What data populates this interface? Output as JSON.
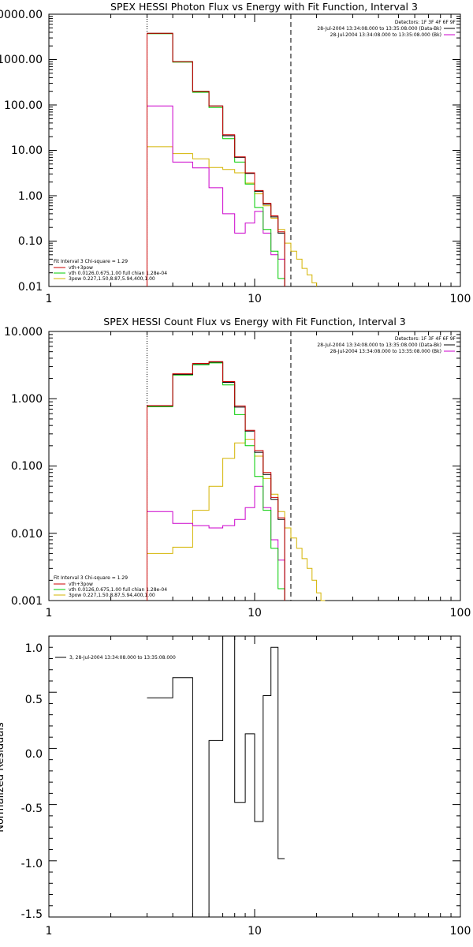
{
  "colors": {
    "total": "#000000",
    "thermal": "#cc0000",
    "vth": "#00cc00",
    "bpow": "#cc00cc",
    "thick": "#d4b400",
    "residual": "#000000",
    "background": "#ffffff"
  },
  "chart_data": [
    {
      "type": "line",
      "id": "photon",
      "title": "SPEX HESSI Photon Flux vs Energy with Fit Function, Interval 3",
      "xscale": "log",
      "yscale": "log",
      "xlim": [
        1,
        100
      ],
      "ylim": [
        0.01,
        10000
      ],
      "x_ticks": [
        "1",
        "10",
        "100"
      ],
      "y_ticks": [
        "0.01",
        "0.10",
        "1.00",
        "10.00",
        "100.00",
        "1000.00",
        "10000.00"
      ],
      "fit_range_x": [
        3,
        15
      ],
      "header": {
        "detectors": "Detectors: 1F 3F 4F 6F 9F",
        "line1": "28-Jul-2004 13:34:08.000 to 13:35:08.000 (Data-Bk)",
        "line2": "28-Jul-2004 13:34:08.000 to 13:35:08.000 (Bk)"
      },
      "legend": {
        "title": "Fit Interval 3   Chi-square = 1.29",
        "entries": [
          "vth+3pow",
          "vth 0.0126,0.675,1.00  full chian 1.28e-04",
          "3pow 0.227,1.50,8.87,5.94,400,1.00"
        ]
      },
      "bin_edges": [
        3,
        4,
        5,
        6,
        7,
        8,
        9,
        10,
        11,
        12,
        13,
        14,
        15,
        16,
        17,
        18,
        19,
        20,
        21,
        22,
        23
      ],
      "series": [
        {
          "name": "vth+3pow",
          "color_key": "total",
          "values": [
            3800,
            900,
            200,
            95,
            21,
            7,
            3.1,
            1.25,
            0.65,
            0.34,
            0.15,
            null,
            null,
            null,
            null,
            null,
            null,
            null,
            null,
            null
          ]
        },
        {
          "name": "vth 0.0126,0.675,1.00  full chian 1.28e-04",
          "color_key": "vth",
          "values": [
            3700,
            880,
            190,
            88,
            18,
            5.5,
            1.8,
            0.55,
            0.18,
            0.06,
            0.015,
            null,
            null,
            null,
            null,
            null,
            null,
            null,
            null,
            null
          ]
        },
        {
          "name": "3pow 0.227,1.50,8.87,5.94,400,1.00",
          "color_key": "thick",
          "values": [
            12,
            8.5,
            6.5,
            4.2,
            3.8,
            3.2,
            1.9,
            1.1,
            0.6,
            0.32,
            0.18,
            0.09,
            0.06,
            0.04,
            0.025,
            0.018,
            0.012,
            null,
            null,
            null
          ]
        },
        {
          "name": "",
          "color_key": "bpow",
          "values": [
            95,
            5.5,
            4.1,
            1.5,
            0.4,
            0.15,
            0.25,
            0.45,
            0.15,
            0.05,
            0.04,
            null,
            null,
            null,
            null,
            null,
            null,
            null,
            null,
            null
          ]
        },
        {
          "name": "",
          "color_key": "thermal",
          "values": [
            3800,
            900,
            200,
            95,
            22,
            7.2,
            3.2,
            1.3,
            0.68,
            0.36,
            0.16,
            null,
            null,
            null,
            null,
            null,
            null,
            null,
            null,
            null
          ]
        }
      ]
    },
    {
      "type": "line",
      "id": "count",
      "title": "SPEX HESSI Count Flux vs Energy with Fit Function, Interval 3",
      "xscale": "log",
      "yscale": "log",
      "xlim": [
        1,
        100
      ],
      "ylim": [
        0.001,
        10
      ],
      "x_ticks": [
        "1",
        "10",
        "100"
      ],
      "y_ticks": [
        "0.001",
        "0.010",
        "0.100",
        "1.000",
        "10.000"
      ],
      "fit_range_x": [
        3,
        15
      ],
      "header": {
        "detectors": "Detectors: 1F 3F 4F 6F 9F",
        "line1": "28-Jul-2004 13:34:08.000 to 13:35:08.000 (Data-Bk)",
        "line2": "28-Jul-2004 13:34:08.000 to 13:35:08.000 (Bk)"
      },
      "legend": {
        "title": "Fit Interval 3   Chi-square = 1.29",
        "entries": [
          "vth+3pow",
          "vth 0.0126,0.675,1.00  full chian 1.28e-04",
          "3pow 0.227,1.50,8.87,5.94,400,1.00"
        ]
      },
      "bin_edges": [
        3,
        4,
        5,
        6,
        7,
        8,
        9,
        10,
        11,
        12,
        13,
        14,
        15,
        16,
        17,
        18,
        19,
        20,
        21,
        22,
        23,
        24,
        25
      ],
      "series": [
        {
          "name": "vth+3pow",
          "color_key": "total",
          "values": [
            0.78,
            2.3,
            3.3,
            3.5,
            1.75,
            0.75,
            0.33,
            0.16,
            0.075,
            0.032,
            0.016,
            null,
            null,
            null,
            null,
            null,
            null,
            null,
            null,
            null,
            null,
            null
          ]
        },
        {
          "name": "vth 0.0126,0.675,1.00  full chian 1.28e-04",
          "color_key": "vth",
          "values": [
            0.76,
            2.25,
            3.2,
            3.4,
            1.6,
            0.58,
            0.2,
            0.07,
            0.022,
            0.006,
            0.0015,
            null,
            null,
            null,
            null,
            null,
            null,
            null,
            null,
            null,
            null,
            null
          ]
        },
        {
          "name": "3pow 0.227,1.50,8.87,5.94,400,1.00",
          "color_key": "thick",
          "values": [
            0.005,
            0.0062,
            0.022,
            0.05,
            0.13,
            0.22,
            0.25,
            0.14,
            0.065,
            0.038,
            0.021,
            0.012,
            0.0085,
            0.006,
            0.0042,
            0.003,
            0.002,
            0.0013,
            0.001,
            null,
            null,
            null
          ]
        },
        {
          "name": "",
          "color_key": "bpow",
          "values": [
            0.021,
            0.014,
            0.013,
            0.012,
            0.013,
            0.016,
            0.024,
            0.05,
            0.024,
            0.008,
            0.004,
            null,
            null,
            null,
            null,
            null,
            null,
            null,
            null,
            null,
            null,
            null
          ]
        },
        {
          "name": "",
          "color_key": "thermal",
          "values": [
            0.79,
            2.35,
            3.35,
            3.55,
            1.8,
            0.78,
            0.34,
            0.17,
            0.08,
            0.034,
            0.017,
            null,
            null,
            null,
            null,
            null,
            null,
            null,
            null,
            null,
            null,
            null
          ]
        }
      ]
    },
    {
      "type": "line",
      "id": "residuals",
      "title": "",
      "xscale": "log",
      "yscale": "linear",
      "xlim": [
        1,
        100
      ],
      "ylim": [
        -1.5,
        1.0
      ],
      "x_ticks": [
        "1",
        "10",
        "100"
      ],
      "y_ticks": [
        "1.0",
        "0.5",
        "0.0",
        "-0.5",
        "-1.0",
        "-1.5"
      ],
      "ylabel": "Normalized Residuals",
      "legend": {
        "entries": [
          "3, 28-Jul-2004 13:34:08.000 to 13:35:08.000"
        ]
      },
      "bin_edges": [
        3,
        4,
        5,
        6,
        7,
        8,
        9,
        10,
        11,
        12,
        13,
        14,
        15
      ],
      "series": [
        {
          "name": "3, 28-Jul-2004 13:34:08.000 to 13:35:08.000",
          "color_key": "residual",
          "values": [
            0.45,
            0.63,
            -1.52,
            0.07,
            1.0,
            -0.48,
            0.13,
            -0.65,
            0.47,
            0.9,
            -0.98,
            null
          ]
        }
      ]
    }
  ]
}
